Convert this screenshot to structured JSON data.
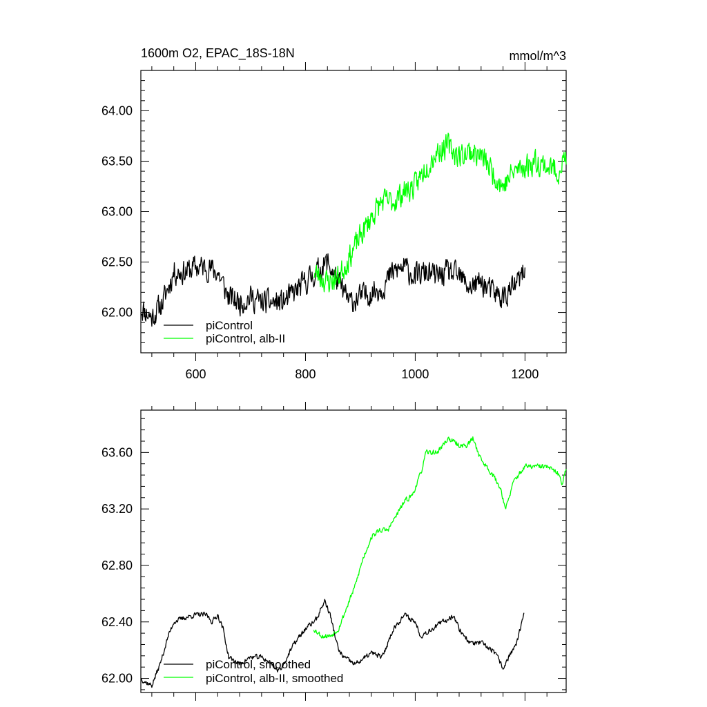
{
  "chart_data": [
    {
      "type": "line",
      "title": "1600m O2, EPAC_18S-18N",
      "units": "mmol/m^3",
      "xlim": [
        500,
        1275
      ],
      "ylim": [
        61.6,
        64.4
      ],
      "xticks": [
        600,
        800,
        1000,
        1200
      ],
      "xticklabels": [
        "600",
        "800",
        "1000",
        "1200"
      ],
      "yticks": [
        62.0,
        62.5,
        63.0,
        63.5,
        64.0
      ],
      "yticklabels": [
        "62.00",
        "62.50",
        "63.00",
        "63.50",
        "64.00"
      ],
      "legend": "bottom-left",
      "series": [
        {
          "name": "piControl",
          "color": "#000000",
          "x_start": 500,
          "x_end": 1200,
          "anchors": [
            [
              500,
              62.05
            ],
            [
              520,
              61.95
            ],
            [
              540,
              62.1
            ],
            [
              560,
              62.4
            ],
            [
              580,
              62.4
            ],
            [
              600,
              62.45
            ],
            [
              620,
              62.45
            ],
            [
              640,
              62.4
            ],
            [
              660,
              62.15
            ],
            [
              680,
              62.1
            ],
            [
              700,
              62.15
            ],
            [
              720,
              62.1
            ],
            [
              740,
              62.1
            ],
            [
              760,
              62.1
            ],
            [
              780,
              62.2
            ],
            [
              800,
              62.3
            ],
            [
              820,
              62.4
            ],
            [
              840,
              62.5
            ],
            [
              860,
              62.3
            ],
            [
              880,
              62.1
            ],
            [
              900,
              62.15
            ],
            [
              920,
              62.2
            ],
            [
              940,
              62.25
            ],
            [
              960,
              62.4
            ],
            [
              980,
              62.45
            ],
            [
              1000,
              62.35
            ],
            [
              1020,
              62.4
            ],
            [
              1040,
              62.35
            ],
            [
              1060,
              62.4
            ],
            [
              1080,
              62.35
            ],
            [
              1100,
              62.25
            ],
            [
              1120,
              62.3
            ],
            [
              1140,
              62.2
            ],
            [
              1160,
              62.15
            ],
            [
              1180,
              62.25
            ],
            [
              1200,
              62.4
            ]
          ],
          "noise": 0.17,
          "seed": 11
        },
        {
          "name": "piControl, alb-II",
          "color": "#00ff00",
          "x_start": 815,
          "x_end": 1275,
          "anchors": [
            [
              815,
              62.4
            ],
            [
              840,
              62.3
            ],
            [
              860,
              62.35
            ],
            [
              880,
              62.55
            ],
            [
              900,
              62.75
            ],
            [
              920,
              62.95
            ],
            [
              940,
              63.1
            ],
            [
              960,
              63.1
            ],
            [
              980,
              63.2
            ],
            [
              1000,
              63.25
            ],
            [
              1020,
              63.45
            ],
            [
              1040,
              63.6
            ],
            [
              1060,
              63.65
            ],
            [
              1080,
              63.55
            ],
            [
              1100,
              63.6
            ],
            [
              1120,
              63.55
            ],
            [
              1140,
              63.4
            ],
            [
              1160,
              63.25
            ],
            [
              1180,
              63.4
            ],
            [
              1200,
              63.45
            ],
            [
              1220,
              63.5
            ],
            [
              1240,
              63.45
            ],
            [
              1260,
              63.4
            ],
            [
              1275,
              63.55
            ]
          ],
          "noise": 0.17,
          "seed": 23
        }
      ]
    },
    {
      "type": "line",
      "title": "",
      "xlim": [
        500,
        1275
      ],
      "ylim": [
        61.9,
        63.9
      ],
      "xticks": [
        600,
        800,
        1000,
        1200
      ],
      "xticklabels": [],
      "yticks": [
        62.0,
        62.4,
        62.8,
        63.2,
        63.6
      ],
      "yticklabels": [
        "62.00",
        "62.40",
        "62.80",
        "63.20",
        "63.60"
      ],
      "legend": "bottom-left",
      "series": [
        {
          "name": "piControl, smoothed",
          "color": "#000000",
          "x_start": 500,
          "x_end": 1198,
          "anchors": [
            [
              500,
              62.0
            ],
            [
              510,
              61.97
            ],
            [
              520,
              61.95
            ],
            [
              535,
              62.1
            ],
            [
              550,
              62.3
            ],
            [
              560,
              62.4
            ],
            [
              580,
              62.43
            ],
            [
              600,
              62.45
            ],
            [
              620,
              62.45
            ],
            [
              630,
              62.4
            ],
            [
              640,
              62.45
            ],
            [
              650,
              62.35
            ],
            [
              660,
              62.15
            ],
            [
              680,
              62.1
            ],
            [
              700,
              62.15
            ],
            [
              720,
              62.15
            ],
            [
              740,
              62.1
            ],
            [
              750,
              62.05
            ],
            [
              760,
              62.1
            ],
            [
              780,
              62.25
            ],
            [
              800,
              62.35
            ],
            [
              820,
              62.42
            ],
            [
              835,
              62.55
            ],
            [
              845,
              62.45
            ],
            [
              860,
              62.2
            ],
            [
              870,
              62.15
            ],
            [
              890,
              62.1
            ],
            [
              910,
              62.15
            ],
            [
              920,
              62.18
            ],
            [
              940,
              62.15
            ],
            [
              960,
              62.35
            ],
            [
              980,
              62.45
            ],
            [
              1000,
              62.4
            ],
            [
              1010,
              62.3
            ],
            [
              1030,
              62.35
            ],
            [
              1050,
              62.4
            ],
            [
              1060,
              62.42
            ],
            [
              1070,
              62.45
            ],
            [
              1080,
              62.35
            ],
            [
              1100,
              62.25
            ],
            [
              1120,
              62.25
            ],
            [
              1140,
              62.2
            ],
            [
              1150,
              62.15
            ],
            [
              1160,
              62.07
            ],
            [
              1170,
              62.15
            ],
            [
              1185,
              62.25
            ],
            [
              1198,
              62.45
            ]
          ],
          "noise": 0.025,
          "seed": 37
        },
        {
          "name": "piControl, alb-II, smoothed",
          "color": "#00ff00",
          "x_start": 815,
          "x_end": 1275,
          "anchors": [
            [
              815,
              62.35
            ],
            [
              830,
              62.3
            ],
            [
              845,
              62.3
            ],
            [
              860,
              62.35
            ],
            [
              875,
              62.5
            ],
            [
              890,
              62.65
            ],
            [
              905,
              62.85
            ],
            [
              920,
              63.0
            ],
            [
              935,
              63.05
            ],
            [
              950,
              63.05
            ],
            [
              965,
              63.15
            ],
            [
              980,
              63.25
            ],
            [
              995,
              63.3
            ],
            [
              1010,
              63.45
            ],
            [
              1020,
              63.6
            ],
            [
              1040,
              63.6
            ],
            [
              1060,
              63.7
            ],
            [
              1080,
              63.65
            ],
            [
              1095,
              63.65
            ],
            [
              1105,
              63.7
            ],
            [
              1120,
              63.55
            ],
            [
              1140,
              63.45
            ],
            [
              1155,
              63.35
            ],
            [
              1165,
              63.2
            ],
            [
              1180,
              63.4
            ],
            [
              1200,
              63.5
            ],
            [
              1220,
              63.5
            ],
            [
              1240,
              63.5
            ],
            [
              1260,
              63.45
            ],
            [
              1268,
              63.38
            ],
            [
              1275,
              63.5
            ]
          ],
          "noise": 0.025,
          "seed": 53
        }
      ]
    }
  ]
}
